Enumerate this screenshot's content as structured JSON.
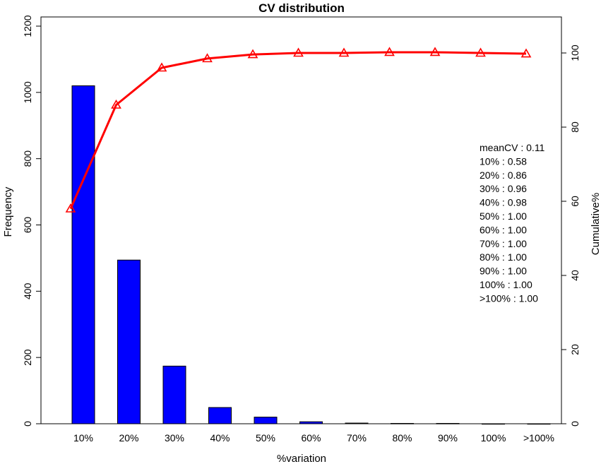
{
  "chart_data": {
    "type": "bar",
    "title": "CV distribution",
    "xlabel": "%variation",
    "ylabel": "Frequency",
    "y2label": "Cumulative%",
    "categories": [
      "10%",
      "20%",
      "30%",
      "40%",
      "50%",
      "60%",
      "70%",
      "80%",
      "90%",
      "100%",
      ">100%"
    ],
    "series": [
      {
        "kind": "bar",
        "axis": "left",
        "color": "#0000ff",
        "values": [
          1020,
          494,
          174,
          49,
          20,
          6,
          2,
          1,
          1,
          0,
          0
        ]
      },
      {
        "kind": "line",
        "axis": "right",
        "marker": "triangle",
        "color": "#ff0000",
        "values": [
          58,
          86,
          96,
          98.5,
          99.6,
          100,
          100,
          100.2,
          100.2,
          100,
          99.8
        ]
      }
    ],
    "ylim": [
      0,
      1200
    ],
    "y2lim": [
      0,
      100
    ],
    "yticks": [
      0,
      200,
      400,
      600,
      800,
      1000,
      1200
    ],
    "y2ticks": [
      0,
      20,
      40,
      60,
      80,
      100
    ],
    "grid": false,
    "annotations": [
      "meanCV : 0.11",
      "10% : 0.58",
      "20% : 0.86",
      "30% : 0.96",
      "40% : 0.98",
      "50% : 1.00",
      "60% : 1.00",
      "70% : 1.00",
      "80% : 1.00",
      "90% : 1.00",
      "100% : 1.00",
      ">100% : 1.00"
    ]
  }
}
